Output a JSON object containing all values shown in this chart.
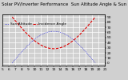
{
  "title": "Solar PV/Inverter Performance  Sun Altitude Angle & Sun Incidence Angle on PV Panels",
  "x_start": 5,
  "x_end": 21,
  "x_ticks": [
    5,
    6,
    7,
    8,
    9,
    10,
    11,
    12,
    13,
    14,
    15,
    16,
    17,
    18,
    19,
    20,
    21
  ],
  "y_lim": [
    -5,
    95
  ],
  "y_right_ticks": [
    0,
    10,
    20,
    30,
    40,
    50,
    60,
    70,
    80,
    90
  ],
  "altitude_color": "#0000dd",
  "incidence_color": "#dd0000",
  "background_color": "#d0d0d0",
  "plot_bg_color": "#d0d0d0",
  "grid_color": "#ffffff",
  "legend_altitude": "Sun Altitude",
  "legend_incidence": "Incidence Angle",
  "title_fontsize": 4.0,
  "axis_fontsize": 3.2,
  "legend_fontsize": 3.2,
  "alt_peak": 62,
  "alt_sunrise": 6.5,
  "alt_sunset": 19.5,
  "inc_noon": 28,
  "inc_edge": 90
}
